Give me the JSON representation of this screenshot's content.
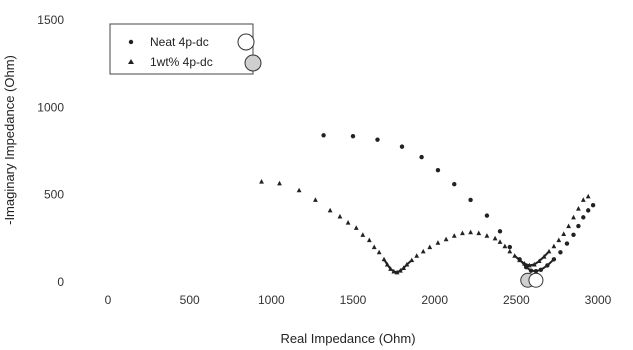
{
  "chart_data": {
    "type": "scatter",
    "xlabel": "Real Impedance (Ohm)",
    "ylabel": "-Imaginary Impedance (Ohm)",
    "xlim": [
      0,
      3000
    ],
    "ylim": [
      0,
      1500
    ],
    "xticks": [
      0,
      500,
      1000,
      1500,
      2000,
      2500,
      3000
    ],
    "yticks": [
      0,
      500,
      1000,
      1500
    ],
    "grid": false,
    "legend_position": "top-left",
    "series": [
      {
        "name": "Neat 4p-dc",
        "marker": "circle",
        "color": "#222222",
        "x": [
          1320,
          1500,
          1650,
          1800,
          1920,
          2020,
          2120,
          2220,
          2320,
          2400,
          2460,
          2520,
          2560,
          2590,
          2620,
          2650,
          2690,
          2730,
          2770,
          2810,
          2850,
          2880,
          2910,
          2940,
          2970
        ],
        "y": [
          840,
          835,
          815,
          775,
          715,
          640,
          560,
          470,
          380,
          290,
          200,
          130,
          85,
          65,
          62,
          70,
          95,
          130,
          170,
          220,
          270,
          320,
          370,
          410,
          440
        ]
      },
      {
        "name": "1wt% 4p-dc",
        "marker": "triangle",
        "color": "#222222",
        "x": [
          940,
          1050,
          1170,
          1270,
          1360,
          1420,
          1470,
          1520,
          1560,
          1600,
          1630,
          1660,
          1690,
          1710,
          1730,
          1750,
          1770,
          1790,
          1810,
          1830,
          1860,
          1890,
          1930,
          1970,
          2020,
          2070,
          2120,
          2170,
          2220,
          2270,
          2320,
          2370,
          2400,
          2430,
          2460,
          2490,
          2520,
          2550,
          2580,
          2610,
          2640,
          2670,
          2700,
          2730,
          2760,
          2790,
          2820,
          2850,
          2880,
          2910,
          2940
        ],
        "y": [
          575,
          565,
          525,
          470,
          410,
          375,
          340,
          310,
          270,
          240,
          200,
          170,
          130,
          100,
          75,
          60,
          55,
          65,
          80,
          100,
          125,
          150,
          175,
          200,
          225,
          245,
          265,
          280,
          285,
          280,
          265,
          250,
          230,
          205,
          175,
          150,
          125,
          105,
          95,
          100,
          120,
          145,
          175,
          205,
          240,
          275,
          320,
          370,
          420,
          470,
          490
        ]
      }
    ]
  }
}
